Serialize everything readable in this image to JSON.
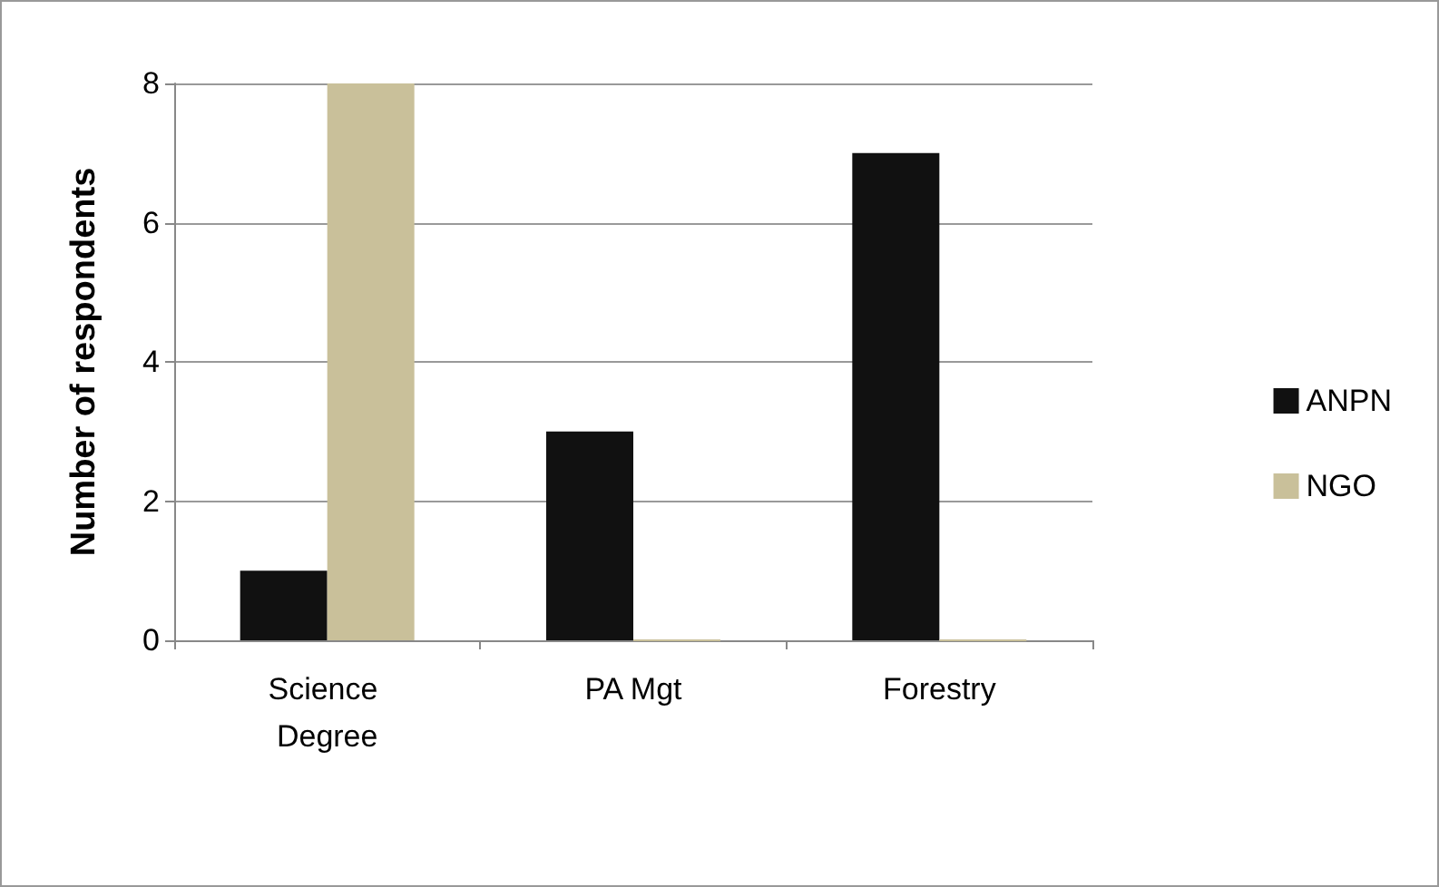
{
  "chart_data": {
    "type": "bar",
    "ylabel": "Number of respondents",
    "categories": [
      "Science Degree",
      "PA Mgt",
      "Forestry"
    ],
    "series": [
      {
        "name": "ANPN",
        "color": "#111111",
        "values": [
          1,
          3,
          7
        ]
      },
      {
        "name": "NGO",
        "color": "#c9c09a",
        "values": [
          8,
          0,
          0
        ]
      }
    ],
    "ylim": [
      0,
      8
    ],
    "yticks": [
      0,
      2,
      4,
      6,
      8
    ],
    "grid": "y",
    "legend": "right"
  }
}
